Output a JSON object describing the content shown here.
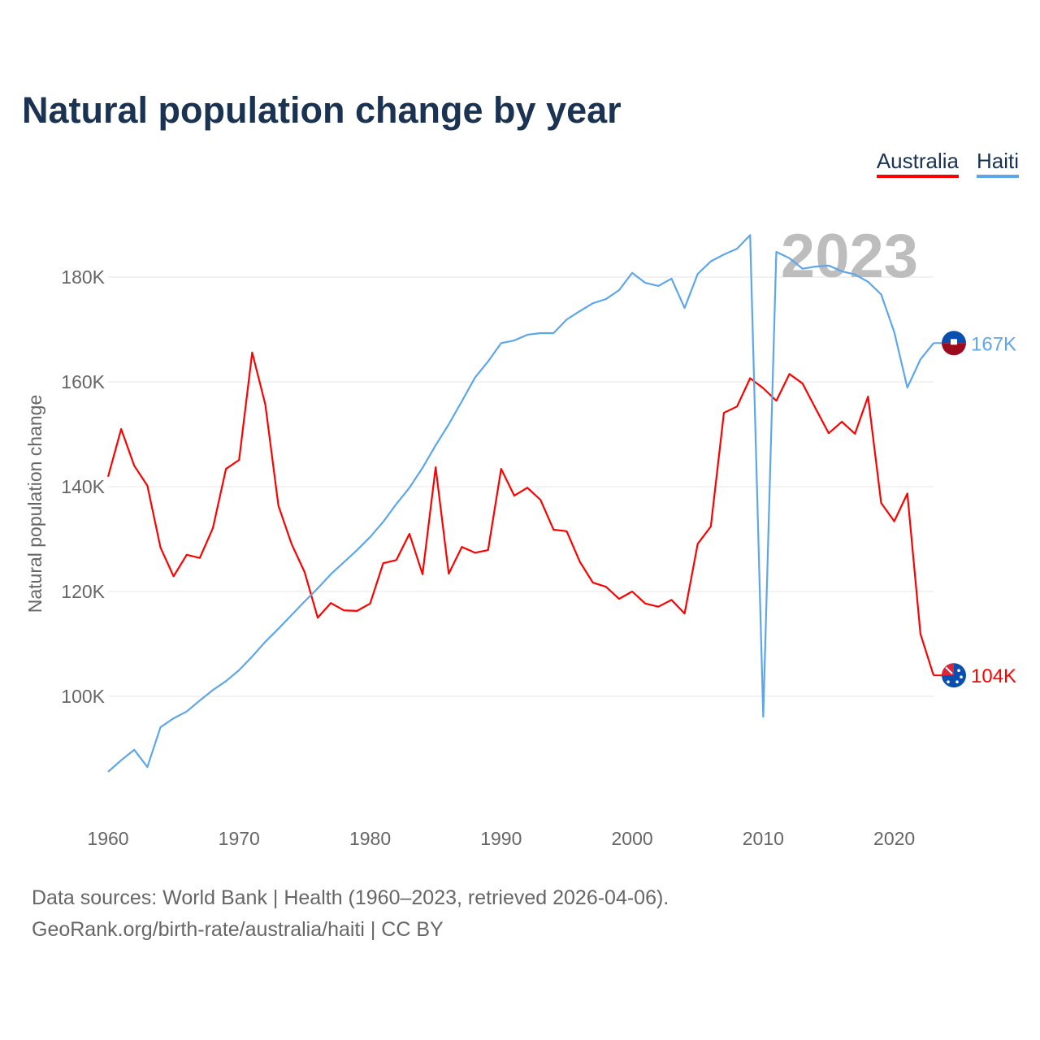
{
  "title": "Natural population change by year",
  "footer": {
    "line1": "Data sources: World Bank | Health (1960–2023, retrieved 2026-04-06).",
    "line2": "GeoRank.org/birth-rate/australia/haiti | CC BY"
  },
  "chart_data": {
    "type": "line",
    "title": "Natural population change by year",
    "xlabel": "",
    "ylabel": "Natural population change",
    "xlim": [
      1960,
      2023
    ],
    "ylim": [
      80000,
      190000
    ],
    "x_ticks": [
      1960,
      1970,
      1980,
      1990,
      2000,
      2010,
      2020
    ],
    "x_tick_labels": [
      "1960",
      "1970",
      "1980",
      "1990",
      "2000",
      "2010",
      "2020"
    ],
    "y_ticks": [
      100000,
      120000,
      140000,
      160000,
      180000
    ],
    "y_tick_labels": [
      "100K",
      "120K",
      "140K",
      "160K",
      "180K"
    ],
    "grid": true,
    "legend_position": "top-right",
    "year_watermark": "2023",
    "x": [
      1960,
      1961,
      1962,
      1963,
      1964,
      1965,
      1966,
      1967,
      1968,
      1969,
      1970,
      1971,
      1972,
      1973,
      1974,
      1975,
      1976,
      1977,
      1978,
      1979,
      1980,
      1981,
      1982,
      1983,
      1984,
      1985,
      1986,
      1987,
      1988,
      1989,
      1990,
      1991,
      1992,
      1993,
      1994,
      1995,
      1996,
      1997,
      1998,
      1999,
      2000,
      2001,
      2002,
      2003,
      2004,
      2005,
      2006,
      2007,
      2008,
      2009,
      2010,
      2011,
      2012,
      2013,
      2014,
      2015,
      2016,
      2017,
      2018,
      2019,
      2020,
      2021,
      2022,
      2023
    ],
    "series": [
      {
        "name": "Australia",
        "color": "#ff0000",
        "end_label": "104K",
        "flag": "australia-flag",
        "values": [
          141900,
          151000,
          144000,
          140200,
          128400,
          122900,
          127000,
          126400,
          132100,
          143400,
          145100,
          165600,
          155700,
          136400,
          129100,
          123700,
          115000,
          117800,
          116400,
          116300,
          117700,
          125400,
          126000,
          131000,
          123300,
          143700,
          123400,
          128500,
          127400,
          127900,
          143400,
          138300,
          139800,
          137500,
          131800,
          131500,
          125700,
          121700,
          120900,
          118600,
          120000,
          117700,
          117100,
          118400,
          115800,
          129100,
          132400,
          154100,
          155300,
          160700,
          158800,
          156400,
          161500,
          159700,
          154900,
          150200,
          152400,
          150100,
          157200,
          136900,
          133400,
          138700,
          111900,
          104000
        ]
      },
      {
        "name": "Haiti",
        "color": "#5ea6ea",
        "end_label": "167K",
        "flag": "haiti-flag",
        "values": [
          85600,
          87800,
          89800,
          86500,
          94100,
          95800,
          97100,
          99200,
          101200,
          102900,
          105000,
          107600,
          110400,
          112900,
          115500,
          118100,
          120600,
          123300,
          125600,
          127900,
          130400,
          133300,
          136700,
          139800,
          143600,
          147900,
          151900,
          156300,
          160800,
          163900,
          167400,
          167900,
          169000,
          169300,
          169300,
          171900,
          173500,
          175000,
          175800,
          177500,
          180800,
          178900,
          178300,
          179700,
          174100,
          180600,
          183000,
          184300,
          185400,
          188000,
          96100,
          184800,
          183600,
          181600,
          182000,
          182200,
          181100,
          180500,
          179100,
          176700,
          169500,
          158900,
          164300,
          167400
        ]
      }
    ]
  }
}
